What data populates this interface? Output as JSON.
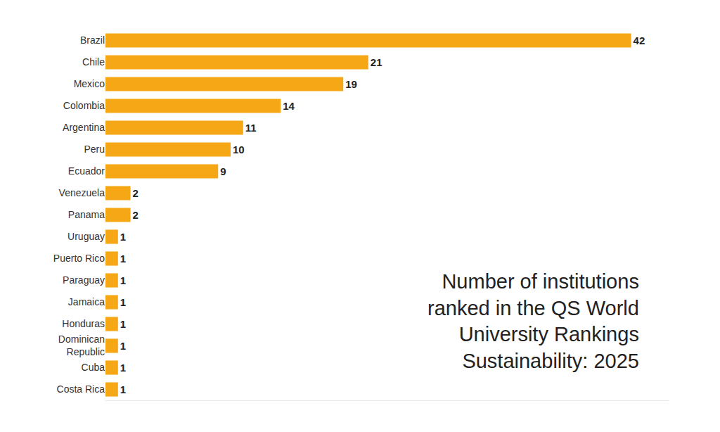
{
  "chart_data": {
    "type": "bar",
    "orientation": "horizontal",
    "title": "Number of institutions ranked in the QS World University Rankings Sustainability: 2025",
    "categories": [
      "Brazil",
      "Chile",
      "Mexico",
      "Colombia",
      "Argentina",
      "Peru",
      "Ecuador",
      "Venezuela",
      "Panama",
      "Uruguay",
      "Puerto Rico",
      "Paraguay",
      "Jamaica",
      "Honduras",
      "Dominican Republic",
      "Cuba",
      "Costa Rica"
    ],
    "values": [
      42,
      21,
      19,
      14,
      11,
      10,
      9,
      2,
      2,
      1,
      1,
      1,
      1,
      1,
      1,
      1,
      1
    ],
    "color": "#f5a716",
    "xlim": [
      0,
      45
    ],
    "xticks": [],
    "grid": false,
    "data_labels": true,
    "tick_labels": "y"
  }
}
